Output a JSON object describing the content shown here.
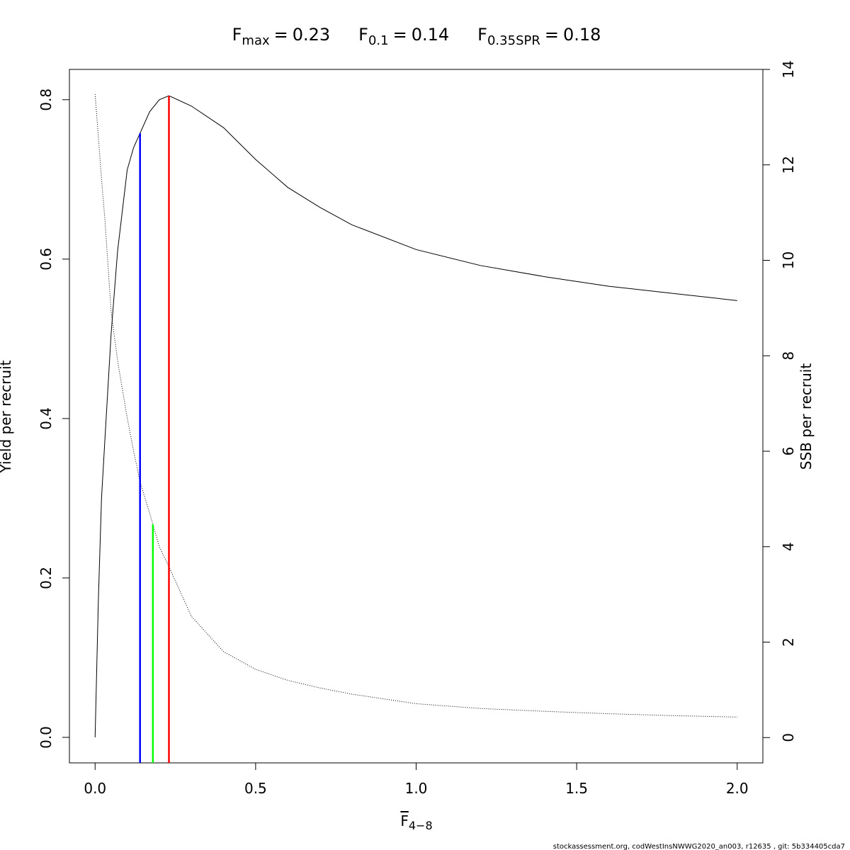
{
  "chart_data": {
    "type": "line",
    "title_parts": [
      {
        "symbol": "F",
        "subscript": "max",
        "operator": "=",
        "value": 0.23,
        "color": "#ff0000",
        "top": 0.805
      },
      {
        "symbol": "F",
        "subscript": "0.1",
        "operator": "=",
        "value": 0.14,
        "color": "#0000ff",
        "top": 0.758
      },
      {
        "symbol": "F",
        "subscript": "0.35SPR",
        "operator": "=",
        "value": 0.18,
        "color": "#00ff00",
        "top": 4.47,
        "axis": "y2"
      }
    ],
    "xlabel": {
      "symbol": "F",
      "subscript": "4−8"
    },
    "ylabel": "Yield per recruit",
    "y2label": "SSB per recruit",
    "footer": "stockassessment.org, codWestInsNWWG2020_an003, r12635 , git: 5b334405cda7",
    "x": [
      0,
      0.01,
      0.02,
      0.03,
      0.05,
      0.07,
      0.1,
      0.12,
      0.14,
      0.17,
      0.2,
      0.23,
      0.3,
      0.4,
      0.5,
      0.6,
      0.7,
      0.8,
      1.0,
      1.2,
      1.4,
      1.6,
      1.8,
      2.0
    ],
    "series": [
      {
        "color": "#000000",
        "linestyle": "solid",
        "values": [
          0,
          0.17,
          0.3,
          0.37,
          0.507,
          0.61,
          0.712,
          0.74,
          0.758,
          0.785,
          0.8,
          0.805,
          0.792,
          0.765,
          0.725,
          0.69,
          0.665,
          0.643,
          0.612,
          0.592,
          0.578,
          0.566,
          0.557,
          0.548
        ]
      },
      {
        "color": "#000000",
        "linestyle": "dotted",
        "axis": "y2",
        "values": [
          13.48,
          12.6,
          11.7,
          10.9,
          8.92,
          7.9,
          6.7,
          6.0,
          5.36,
          4.7,
          4.0,
          3.58,
          2.54,
          1.8,
          1.43,
          1.2,
          1.04,
          0.91,
          0.71,
          0.61,
          0.55,
          0.5,
          0.46,
          0.43
        ]
      }
    ],
    "xlim": [
      -0.08,
      2.08
    ],
    "xticks": [
      {
        "value": 0,
        "label": "0.0"
      },
      0.5,
      {
        "value": 1,
        "label": "1.0"
      },
      1.5,
      {
        "value": 2,
        "label": "2.0"
      }
    ],
    "ylim": [
      -0.032,
      0.838
    ],
    "yticks": [
      {
        "value": 0,
        "label": "0.0"
      },
      0.2,
      0.4,
      0.6,
      0.8
    ],
    "y2lim": [
      -0.53,
      14
    ],
    "y2ticks": [
      0,
      2,
      4,
      6,
      8,
      10,
      12,
      14
    ],
    "grid": false
  }
}
